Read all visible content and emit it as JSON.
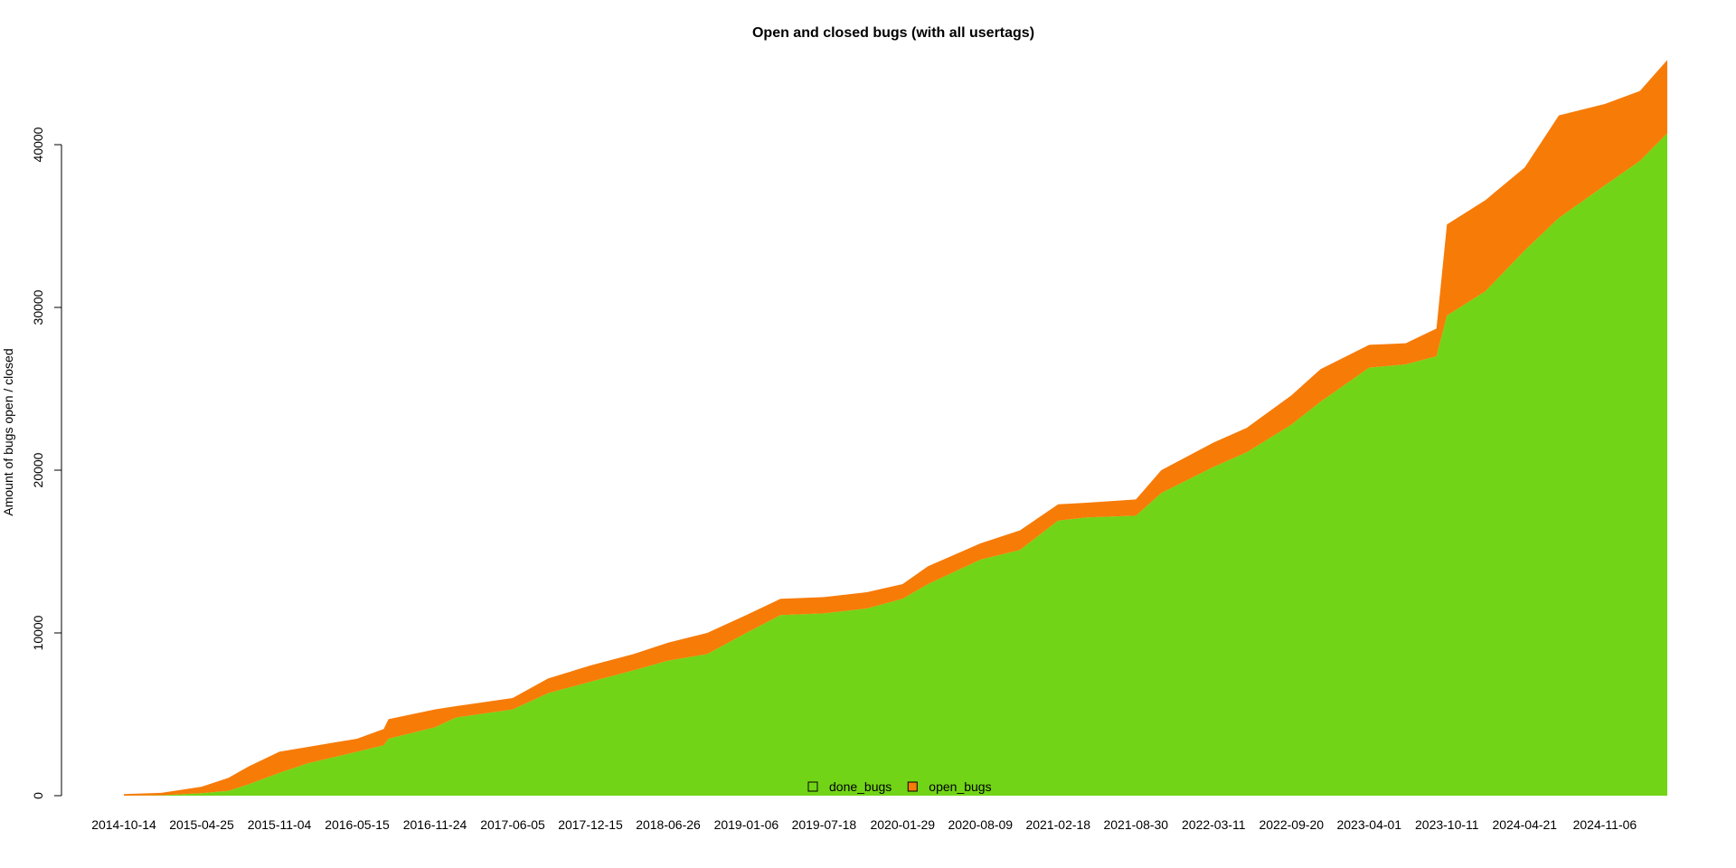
{
  "chart_data": {
    "type": "area",
    "title": "Open and closed bugs (with all usertags)",
    "xlabel": "",
    "ylabel": "Amount of bugs open / closed",
    "x_type": "date",
    "xlim": [
      "2014-10-14",
      "2025-04-10"
    ],
    "ylim": [
      0,
      45000
    ],
    "x_ticks": [
      "2014-10-14",
      "2015-04-25",
      "2015-11-04",
      "2016-05-15",
      "2016-11-24",
      "2017-06-05",
      "2017-12-15",
      "2018-06-26",
      "2019-01-06",
      "2019-07-18",
      "2020-01-29",
      "2020-08-09",
      "2021-02-18",
      "2021-08-30",
      "2022-03-11",
      "2022-09-20",
      "2023-04-01",
      "2023-10-11",
      "2024-04-21",
      "2024-11-06"
    ],
    "y_ticks": [
      0,
      10000,
      20000,
      30000,
      40000
    ],
    "stacked": true,
    "grid": false,
    "legend_position": "bottom-center",
    "series": [
      {
        "name": "done_bugs",
        "color": "#72d416",
        "points": [
          [
            "2014-10-14",
            0
          ],
          [
            "2015-01-15",
            20
          ],
          [
            "2015-04-25",
            150
          ],
          [
            "2015-07-01",
            300
          ],
          [
            "2015-08-20",
            700
          ],
          [
            "2015-11-04",
            1400
          ],
          [
            "2016-01-15",
            2000
          ],
          [
            "2016-05-15",
            2700
          ],
          [
            "2016-07-20",
            3100
          ],
          [
            "2016-08-01",
            3500
          ],
          [
            "2016-11-24",
            4200
          ],
          [
            "2017-01-15",
            4800
          ],
          [
            "2017-06-05",
            5300
          ],
          [
            "2017-09-01",
            6300
          ],
          [
            "2017-12-15",
            7000
          ],
          [
            "2018-04-01",
            7700
          ],
          [
            "2018-06-26",
            8300
          ],
          [
            "2018-10-01",
            8700
          ],
          [
            "2019-01-06",
            10000
          ],
          [
            "2019-04-01",
            11100
          ],
          [
            "2019-07-18",
            11200
          ],
          [
            "2019-11-01",
            11500
          ],
          [
            "2020-01-29",
            12100
          ],
          [
            "2020-04-01",
            13000
          ],
          [
            "2020-08-09",
            14500
          ],
          [
            "2020-11-15",
            15100
          ],
          [
            "2021-02-18",
            16900
          ],
          [
            "2021-05-01",
            17100
          ],
          [
            "2021-08-30",
            17200
          ],
          [
            "2021-11-01",
            18600
          ],
          [
            "2022-03-11",
            20200
          ],
          [
            "2022-06-01",
            21100
          ],
          [
            "2022-09-20",
            22800
          ],
          [
            "2022-12-01",
            24200
          ],
          [
            "2023-04-01",
            26300
          ],
          [
            "2023-07-01",
            26500
          ],
          [
            "2023-09-15",
            27000
          ],
          [
            "2023-10-11",
            29500
          ],
          [
            "2024-01-15",
            31000
          ],
          [
            "2024-04-21",
            33500
          ],
          [
            "2024-07-15",
            35500
          ],
          [
            "2024-11-06",
            37500
          ],
          [
            "2025-02-01",
            39000
          ],
          [
            "2025-04-10",
            40700
          ]
        ]
      },
      {
        "name": "open_bugs",
        "color": "#f77b07",
        "points": [
          [
            "2014-10-14",
            100
          ],
          [
            "2015-01-15",
            150
          ],
          [
            "2015-04-25",
            400
          ],
          [
            "2015-07-01",
            800
          ],
          [
            "2015-08-20",
            1100
          ],
          [
            "2015-11-04",
            1300
          ],
          [
            "2016-01-15",
            1000
          ],
          [
            "2016-05-15",
            800
          ],
          [
            "2016-07-20",
            1000
          ],
          [
            "2016-08-01",
            1200
          ],
          [
            "2016-11-24",
            1100
          ],
          [
            "2017-01-15",
            700
          ],
          [
            "2017-06-05",
            700
          ],
          [
            "2017-09-01",
            900
          ],
          [
            "2017-12-15",
            1000
          ],
          [
            "2018-04-01",
            1000
          ],
          [
            "2018-06-26",
            1100
          ],
          [
            "2018-10-01",
            1300
          ],
          [
            "2019-01-06",
            1100
          ],
          [
            "2019-04-01",
            1000
          ],
          [
            "2019-07-18",
            1000
          ],
          [
            "2019-11-01",
            1000
          ],
          [
            "2020-01-29",
            900
          ],
          [
            "2020-04-01",
            1100
          ],
          [
            "2020-08-09",
            1000
          ],
          [
            "2020-11-15",
            1200
          ],
          [
            "2021-02-18",
            1000
          ],
          [
            "2021-05-01",
            900
          ],
          [
            "2021-08-30",
            1000
          ],
          [
            "2021-11-01",
            1400
          ],
          [
            "2022-03-11",
            1500
          ],
          [
            "2022-06-01",
            1500
          ],
          [
            "2022-09-20",
            1800
          ],
          [
            "2022-12-01",
            2000
          ],
          [
            "2023-04-01",
            1400
          ],
          [
            "2023-07-01",
            1300
          ],
          [
            "2023-09-15",
            1700
          ],
          [
            "2023-10-11",
            5600
          ],
          [
            "2024-01-15",
            5600
          ],
          [
            "2024-04-21",
            5100
          ],
          [
            "2024-07-15",
            6300
          ],
          [
            "2024-11-06",
            5000
          ],
          [
            "2025-02-01",
            4300
          ],
          [
            "2025-04-10",
            4500
          ]
        ]
      }
    ]
  }
}
